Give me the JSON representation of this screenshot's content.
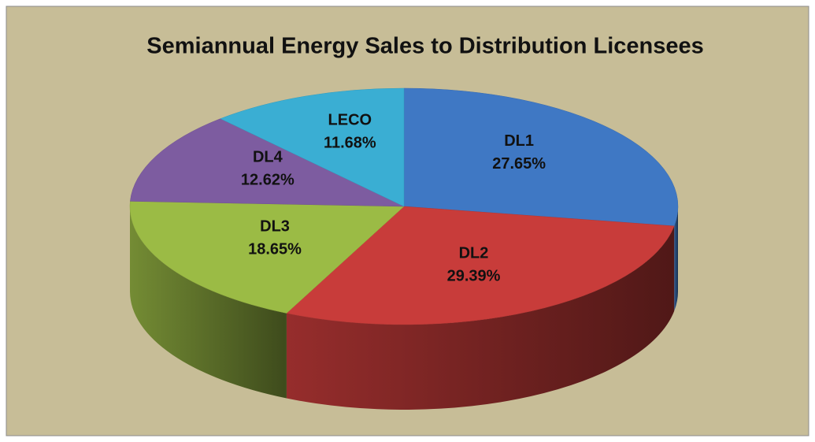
{
  "chart_data": {
    "type": "pie",
    "title": "Semiannual Energy Sales to Distribution Licensees",
    "categories": [
      "DL1",
      "DL2",
      "DL3",
      "DL4",
      "LECO"
    ],
    "values": [
      27.65,
      29.39,
      18.65,
      12.62,
      11.68
    ],
    "value_labels": [
      "27.65%",
      "29.39%",
      "18.65%",
      "12.62%",
      "11.68%"
    ],
    "colors": [
      "#3f78c4",
      "#c83c3a",
      "#9bbb45",
      "#7d5ca0",
      "#3aaed3"
    ]
  }
}
